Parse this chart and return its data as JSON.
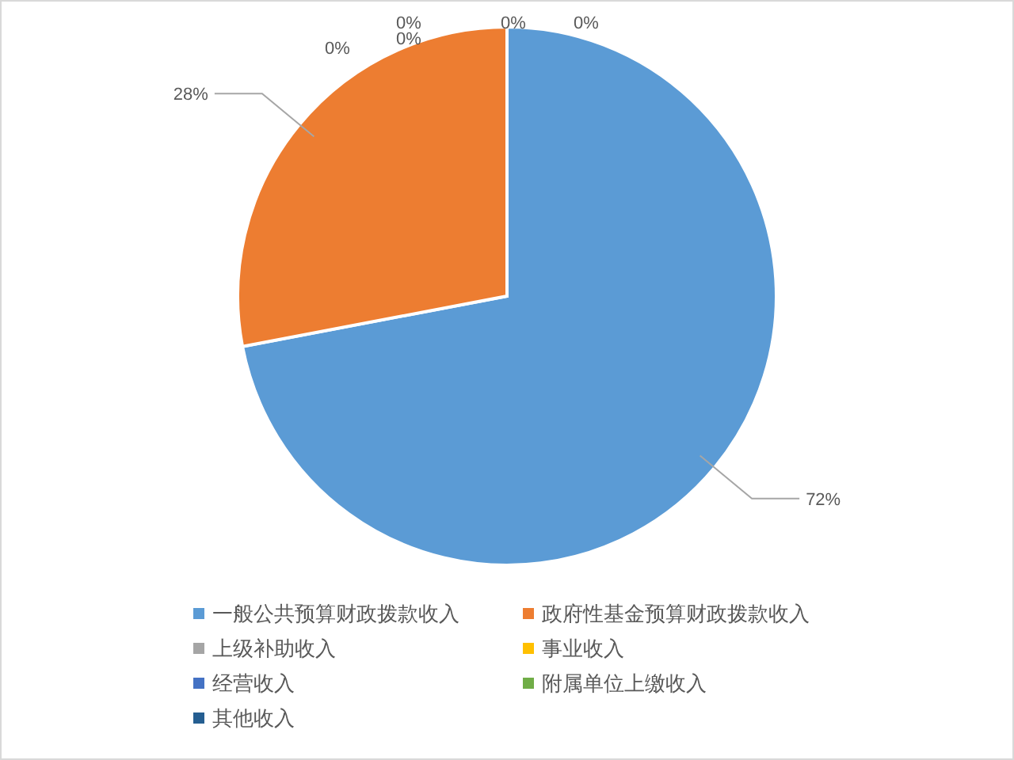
{
  "chart_data": {
    "type": "pie",
    "categories": [
      "一般公共预算财政拨款收入",
      "政府性基金预算财政拨款收入",
      "上级补助收入",
      "事业收入",
      "经营收入",
      "附属单位上缴收入",
      "其他收入"
    ],
    "values": [
      72,
      28,
      0,
      0,
      0,
      0,
      0
    ],
    "colors": [
      "#5b9bd5",
      "#ed7d31",
      "#a5a5a5",
      "#ffc000",
      "#4472c4",
      "#70ad47",
      "#255e91"
    ],
    "value_labels": [
      "72%",
      "28%",
      "0%",
      "0%",
      "0%",
      "0%",
      "0%"
    ],
    "legend": "bottom"
  }
}
